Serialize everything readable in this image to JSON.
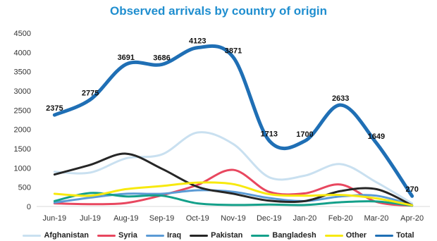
{
  "chart_data": {
    "type": "line",
    "title": "Observed arrivals by country of origin",
    "xlabel": "",
    "ylabel": "",
    "categories": [
      "Jun-19",
      "Jul-19",
      "Aug-19",
      "Sep-19",
      "Oct-19",
      "Nov-19",
      "Dec-19",
      "Jan-20",
      "Feb-20",
      "Mar-20",
      "Apr-20"
    ],
    "ylim": [
      0,
      4500
    ],
    "yticks": [
      "0",
      "500",
      "1000",
      "1500",
      "2000",
      "2500",
      "3000",
      "3500",
      "4000",
      "4500"
    ],
    "grid": false,
    "legend_position": "bottom",
    "series": [
      {
        "name": "Afghanistan",
        "color": "#c9e0f0",
        "width": 3,
        "values": [
          900,
          880,
          1250,
          1350,
          1920,
          1620,
          760,
          800,
          1100,
          630,
          80
        ]
      },
      {
        "name": "Syria",
        "color": "#e8475f",
        "width": 3,
        "values": [
          80,
          60,
          90,
          290,
          560,
          950,
          380,
          340,
          570,
          120,
          20
        ]
      },
      {
        "name": "Iraq",
        "color": "#5b9bd5",
        "width": 3,
        "values": [
          100,
          230,
          330,
          330,
          420,
          380,
          220,
          140,
          260,
          280,
          40
        ]
      },
      {
        "name": "Pakistan",
        "color": "#262626",
        "width": 3,
        "values": [
          830,
          1080,
          1370,
          980,
          510,
          330,
          150,
          140,
          400,
          450,
          30
        ]
      },
      {
        "name": "Bangladesh",
        "color": "#14a08a",
        "width": 3,
        "values": [
          140,
          350,
          260,
          280,
          80,
          40,
          50,
          40,
          110,
          130,
          20
        ]
      },
      {
        "name": "Other",
        "color": "#f7e90f",
        "width": 3,
        "values": [
          330,
          280,
          450,
          530,
          620,
          580,
          320,
          280,
          300,
          210,
          30
        ]
      },
      {
        "name": "Total",
        "color": "#1f6fb5",
        "width": 5,
        "values": [
          2375,
          2775,
          3691,
          3686,
          4123,
          3871,
          1713,
          1700,
          2633,
          1649,
          270
        ]
      }
    ],
    "data_labels": [
      "2375",
      "2775",
      "3691",
      "3686",
      "4123",
      "3871",
      "1713",
      "1700",
      "2633",
      "1649",
      "270"
    ]
  }
}
